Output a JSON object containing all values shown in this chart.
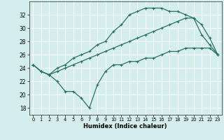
{
  "xlabel": "Humidex (Indice chaleur)",
  "bg_color": "#d4eeed",
  "grid_color": "#ffffff",
  "line_color": "#2a7060",
  "xlim": [
    -0.5,
    23.5
  ],
  "ylim": [
    17,
    34
  ],
  "yticks": [
    18,
    20,
    22,
    24,
    26,
    28,
    30,
    32
  ],
  "xticks": [
    0,
    1,
    2,
    3,
    4,
    5,
    6,
    7,
    8,
    9,
    10,
    11,
    12,
    13,
    14,
    15,
    16,
    17,
    18,
    19,
    20,
    21,
    22,
    23
  ],
  "line1_x": [
    0,
    1,
    2,
    3,
    4,
    5,
    6,
    7,
    8,
    9,
    10,
    11,
    12,
    13,
    14,
    15,
    16,
    17,
    18,
    19,
    20,
    21,
    22,
    23
  ],
  "line1_y": [
    24.5,
    23.5,
    23.0,
    24.0,
    24.5,
    25.5,
    26.0,
    26.5,
    27.5,
    28.0,
    29.5,
    30.5,
    32.0,
    32.5,
    33.0,
    33.0,
    33.0,
    32.5,
    32.5,
    32.0,
    31.5,
    29.0,
    27.5,
    26.0
  ],
  "line2_x": [
    0,
    1,
    2,
    3,
    4,
    5,
    6,
    7,
    8,
    9,
    10,
    11,
    12,
    13,
    14,
    15,
    16,
    17,
    18,
    19,
    20,
    21,
    22,
    23
  ],
  "line2_y": [
    24.5,
    23.5,
    23.0,
    23.5,
    24.0,
    24.5,
    25.0,
    25.5,
    26.0,
    26.5,
    27.0,
    27.5,
    28.0,
    28.5,
    29.0,
    29.5,
    30.0,
    30.5,
    31.0,
    31.5,
    31.5,
    30.5,
    28.5,
    26.0
  ],
  "line3_x": [
    0,
    1,
    2,
    3,
    4,
    5,
    6,
    7,
    8,
    9,
    10,
    11,
    12,
    13,
    14,
    15,
    16,
    17,
    18,
    19,
    20,
    21,
    22,
    23
  ],
  "line3_y": [
    24.5,
    23.5,
    23.0,
    22.0,
    20.5,
    20.5,
    19.5,
    18.0,
    21.5,
    23.5,
    24.5,
    24.5,
    25.0,
    25.0,
    25.5,
    25.5,
    26.0,
    26.5,
    26.5,
    27.0,
    27.0,
    27.0,
    27.0,
    26.0
  ]
}
